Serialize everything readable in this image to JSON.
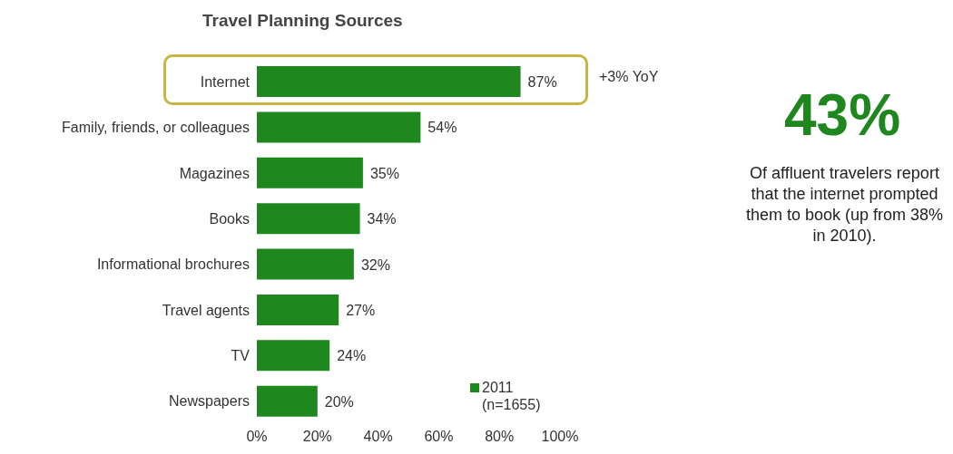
{
  "chart_data": {
    "type": "bar",
    "orientation": "horizontal",
    "title": "Travel Planning Sources",
    "categories": [
      "Internet",
      "Family, friends, or colleagues",
      "Magazines",
      "Books",
      "Informational brochures",
      "Travel agents",
      "TV",
      "Newspapers"
    ],
    "series": [
      {
        "name": "2011 (n=1655)",
        "color": "#1e871e",
        "values": [
          87,
          54,
          35,
          34,
          32,
          27,
          24,
          20
        ],
        "value_labels": [
          "87%",
          "54%",
          "35%",
          "34%",
          "32%",
          "27%",
          "24%",
          "20%"
        ]
      }
    ],
    "xlim": [
      0,
      100
    ],
    "xticks": [
      {
        "value": 0,
        "label": "0%"
      },
      {
        "value": 20,
        "label": "20%"
      },
      {
        "value": 40,
        "label": "40%"
      },
      {
        "value": 60,
        "label": "60%"
      },
      {
        "value": 80,
        "label": "80%"
      },
      {
        "value": 100,
        "label": "100%"
      }
    ],
    "grid": false,
    "legend": "bottom right",
    "annotations": [
      "+3% YoY",
      "43%",
      "Of affluent travelers report that the internet prompted them to book (up from 38% in 2010)."
    ]
  }
}
